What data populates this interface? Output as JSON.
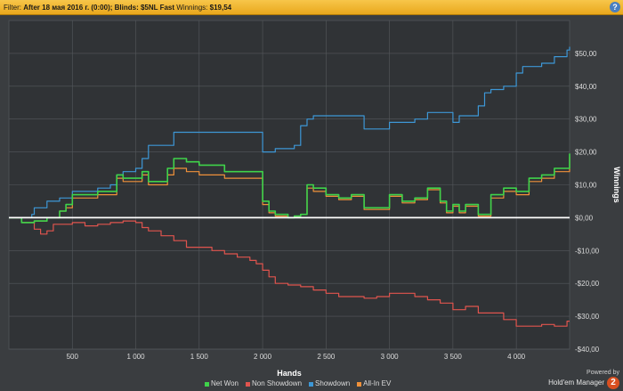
{
  "filter": {
    "label": "Filter:",
    "text": "After 18 мая 2016 г. (0:00); Blinds: $5NL Fast",
    "winnings_label": "Winnings:",
    "winnings_value": "$19,54",
    "help": "?"
  },
  "colors": {
    "net_won": "#3fd34a",
    "non_showdown": "#e0544e",
    "showdown": "#3d97d6",
    "allin_ev": "#f0913a",
    "zero_line": "#ffffff",
    "background": "#3a3d40",
    "grid": "#55595d"
  },
  "chart_data": {
    "type": "line",
    "xlabel": "Hands",
    "ylabel": "Winnings",
    "xlim": [
      0,
      4420
    ],
    "ylim": [
      -40,
      60
    ],
    "x_ticks": [
      {
        "v": 500,
        "label": "500"
      },
      {
        "v": 1000,
        "label": "1 000"
      },
      {
        "v": 1500,
        "label": "1 500"
      },
      {
        "v": 2000,
        "label": "2 000"
      },
      {
        "v": 2500,
        "label": "2 500"
      },
      {
        "v": 3000,
        "label": "3 000"
      },
      {
        "v": 3500,
        "label": "3 500"
      },
      {
        "v": 4000,
        "label": "4 000"
      }
    ],
    "y_ticks": [
      {
        "v": 50,
        "label": "$50,00"
      },
      {
        "v": 40,
        "label": "$40,00"
      },
      {
        "v": 30,
        "label": "$30,00"
      },
      {
        "v": 20,
        "label": "$20,00"
      },
      {
        "v": 10,
        "label": "$10,00"
      },
      {
        "v": 0,
        "label": "$0,00"
      },
      {
        "v": -10,
        "label": "-$10,00"
      },
      {
        "v": -20,
        "label": "-$20,00"
      },
      {
        "v": -30,
        "label": "-$30,00"
      },
      {
        "v": -40,
        "label": "-$40,00"
      }
    ],
    "series": [
      {
        "name": "Net Won",
        "x": [
          0,
          100,
          200,
          300,
          400,
          450,
          500,
          600,
          700,
          800,
          850,
          900,
          950,
          1000,
          1050,
          1100,
          1200,
          1250,
          1300,
          1400,
          1500,
          1600,
          1700,
          1800,
          1900,
          1990,
          2000,
          2050,
          2100,
          2200,
          2250,
          2300,
          2350,
          2400,
          2500,
          2600,
          2700,
          2800,
          2900,
          3000,
          3100,
          3200,
          3300,
          3400,
          3450,
          3500,
          3550,
          3600,
          3700,
          3800,
          3900,
          4000,
          4050,
          4100,
          4200,
          4300,
          4420
        ],
        "y": [
          0,
          -1.5,
          -1,
          0,
          2,
          4,
          7,
          7,
          8,
          8,
          13,
          12,
          12,
          12,
          14,
          11,
          11,
          15,
          18,
          17,
          16,
          16,
          14,
          14,
          14,
          14,
          5,
          2,
          1,
          0,
          0.5,
          1,
          10,
          9,
          7,
          6,
          7,
          3,
          3,
          7,
          5,
          6,
          9,
          5,
          2,
          4,
          2,
          4,
          1,
          7,
          9,
          8,
          8,
          12,
          13,
          15,
          19.5
        ]
      },
      {
        "name": "Non Showdown",
        "x": [
          0,
          100,
          200,
          250,
          300,
          350,
          400,
          500,
          600,
          700,
          800,
          900,
          1000,
          1050,
          1100,
          1200,
          1300,
          1400,
          1500,
          1600,
          1700,
          1800,
          1900,
          1950,
          2000,
          2050,
          2100,
          2200,
          2300,
          2400,
          2500,
          2600,
          2700,
          2800,
          2900,
          3000,
          3100,
          3200,
          3300,
          3400,
          3500,
          3600,
          3700,
          3800,
          3900,
          4000,
          4100,
          4200,
          4300,
          4400,
          4420
        ],
        "y": [
          0,
          -1.5,
          -3.5,
          -5,
          -4,
          -2,
          -2,
          -1.5,
          -2.5,
          -2,
          -1.5,
          -1,
          -1.5,
          -3,
          -4,
          -5.5,
          -7,
          -9,
          -9,
          -10,
          -11,
          -12,
          -13,
          -14,
          -16,
          -18,
          -20,
          -20.5,
          -21,
          -22,
          -23,
          -24,
          -24,
          -24.5,
          -24,
          -23,
          -23,
          -24,
          -25,
          -26,
          -28,
          -27,
          -29,
          -29,
          -31,
          -33,
          -33,
          -32.5,
          -33,
          -31.5,
          -31.5
        ]
      },
      {
        "name": "Showdown",
        "x": [
          0,
          100,
          180,
          200,
          300,
          400,
          500,
          600,
          700,
          800,
          850,
          900,
          1000,
          1050,
          1100,
          1200,
          1300,
          1500,
          1700,
          1800,
          1900,
          1990,
          2000,
          2050,
          2100,
          2200,
          2250,
          2300,
          2350,
          2400,
          2500,
          2600,
          2700,
          2800,
          2900,
          3000,
          3100,
          3200,
          3300,
          3400,
          3500,
          3550,
          3600,
          3700,
          3750,
          3800,
          3900,
          4000,
          4050,
          4100,
          4200,
          4300,
          4400,
          4420
        ],
        "y": [
          0,
          0,
          1,
          3,
          5,
          6,
          8,
          8,
          9,
          10,
          13,
          14,
          15,
          18,
          22,
          22,
          26,
          26,
          26,
          26,
          26,
          26,
          20,
          20,
          21,
          21,
          22,
          28,
          30,
          31,
          31,
          31,
          31,
          27,
          27,
          29,
          29,
          30,
          32,
          32,
          29,
          31,
          31,
          34,
          38,
          39,
          40,
          44,
          46,
          46,
          47,
          49,
          51,
          52
        ]
      },
      {
        "name": "All-In EV",
        "x": [
          0,
          100,
          200,
          300,
          400,
          450,
          500,
          600,
          700,
          800,
          850,
          900,
          950,
          1000,
          1050,
          1100,
          1200,
          1250,
          1300,
          1400,
          1500,
          1600,
          1700,
          1800,
          1900,
          1990,
          2000,
          2050,
          2100,
          2200,
          2250,
          2300,
          2350,
          2400,
          2500,
          2600,
          2700,
          2800,
          2900,
          3000,
          3100,
          3200,
          3300,
          3400,
          3450,
          3500,
          3550,
          3600,
          3700,
          3800,
          3900,
          4000,
          4050,
          4100,
          4200,
          4300,
          4420
        ],
        "y": [
          0,
          -1.5,
          -1,
          0,
          2,
          3,
          6,
          6,
          7,
          7,
          12,
          11,
          11,
          11,
          13,
          10,
          10,
          13,
          15,
          14,
          13,
          13,
          12,
          12,
          12,
          12,
          4,
          1.5,
          0.5,
          0,
          0.5,
          1,
          9,
          8,
          6.5,
          5.5,
          6.5,
          2.5,
          2.5,
          6.5,
          4.5,
          5.5,
          8.5,
          4.5,
          1.5,
          3.5,
          1.5,
          3.5,
          0.5,
          6,
          8,
          7,
          7,
          11,
          12,
          14,
          18.5
        ]
      }
    ]
  },
  "legend": [
    {
      "label": "Net Won",
      "color_key": "net_won"
    },
    {
      "label": "Non Showdown",
      "color_key": "non_showdown"
    },
    {
      "label": "Showdown",
      "color_key": "showdown"
    },
    {
      "label": "All-In EV",
      "color_key": "allin_ev"
    }
  ],
  "brand": {
    "powered_by": "Powered by",
    "product": "Hold'em Manager",
    "logo_text": "2"
  }
}
